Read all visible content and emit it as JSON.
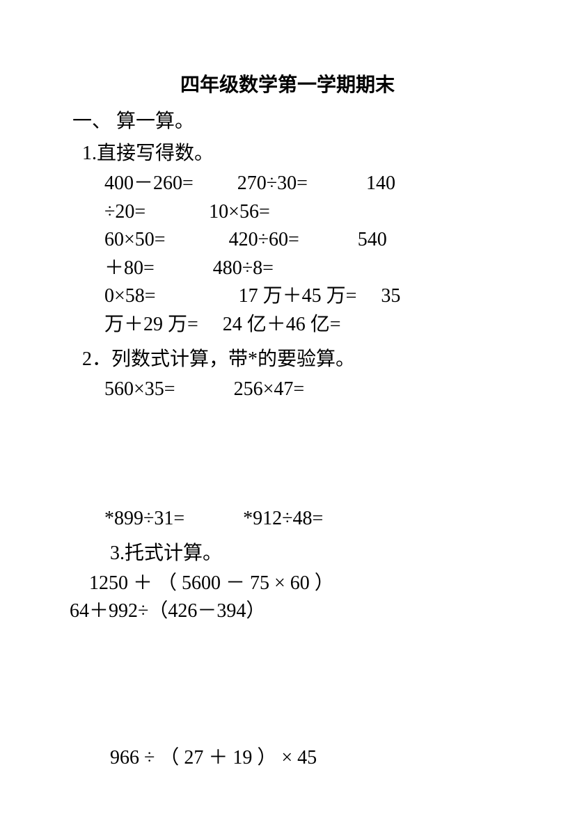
{
  "document": {
    "title": "四年级数学第一学期期末",
    "background_color": "#ffffff",
    "text_color": "#000000",
    "title_fontsize": 28,
    "body_fontsize": 28
  },
  "section1": {
    "heading": "一、 算一算。",
    "q1": {
      "heading": " 1.直接写得数。",
      "line1": "400－260=   270÷30=   140",
      "line2": "÷20=    10×56=",
      "line3": "60×50=    420÷60=   540",
      "line4": "＋80=   480÷8=",
      "line5": "0×58=     17 万＋45 万=  35",
      "line6": "万＋29 万=  24 亿＋46 亿="
    },
    "q2": {
      "heading": " 2．列数式计算，带*的要验算。",
      "line1": "560×35=   256×47=",
      "line2": "*899÷31=   *912÷48="
    },
    "q3": {
      "heading": "3.托式计算。",
      "line1": " 1250 ＋ （ 5600 － 75 × 60 ）",
      "line2": "64＋992÷（426－394）",
      "line3": " 966  ÷  （  27  ＋  19  ）  ×  45"
    }
  }
}
